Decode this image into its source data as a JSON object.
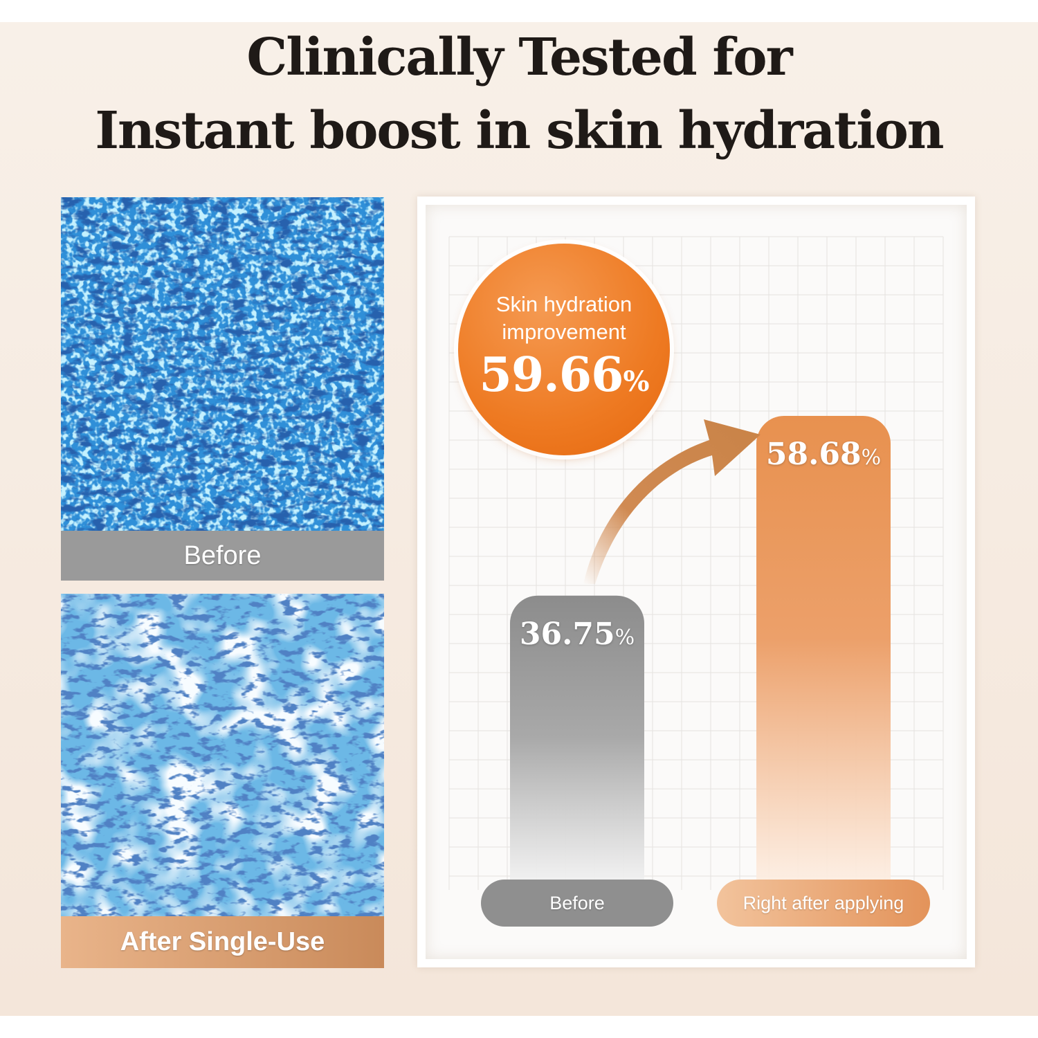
{
  "headline": {
    "line1": "Clinically Tested for",
    "line2": "Instant boost in skin hydration"
  },
  "photos": {
    "before_label": "Before",
    "after_label": "After Single-Use"
  },
  "badge": {
    "label_line1": "Skin hydration",
    "label_line2": "improvement",
    "value": "59.66",
    "unit": "%"
  },
  "chart_data": {
    "type": "bar",
    "categories": [
      "Before",
      "Right after applying"
    ],
    "values": [
      36.75,
      58.68
    ],
    "value_labels": [
      "36.75",
      "58.68"
    ],
    "unit": "%",
    "ylim": [
      0,
      60
    ],
    "grid": true,
    "colors": [
      "#9a9a9a",
      "#e8914f"
    ]
  }
}
